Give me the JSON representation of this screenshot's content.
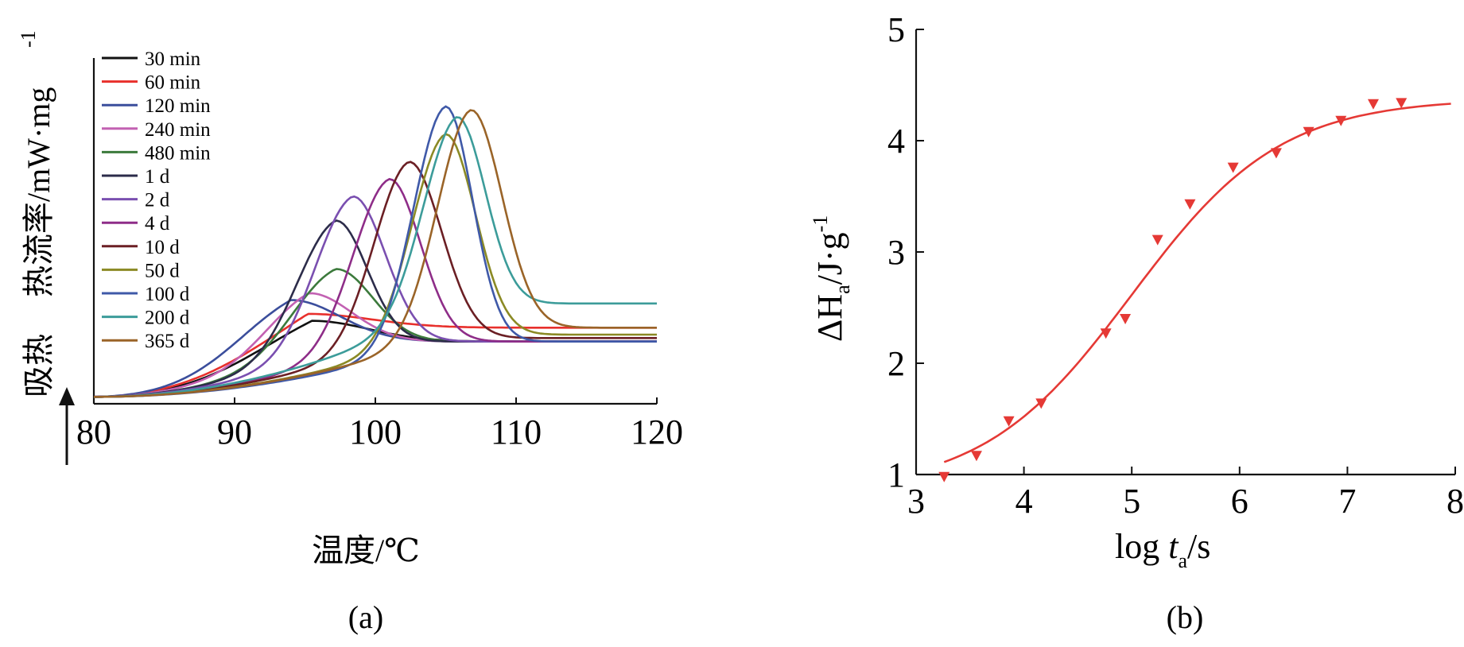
{
  "chart_data": [
    {
      "panel_label": "(a)",
      "type": "line",
      "xlabel": "温度/℃",
      "ylabel_main": "热流率/mW·mg",
      "ylabel_exp": "-1",
      "endotherm_label": "吸热",
      "xlim": [
        80,
        120
      ],
      "xticks": [
        "80",
        "90",
        "100",
        "110",
        "120"
      ],
      "y_units": "arbitrary (no tick values printed)",
      "legend_position": "top-left",
      "series": [
        {
          "name": "30 min",
          "color": "#111111",
          "peak_x": 95.5,
          "peak_h": 0.24,
          "baseline": 0.18,
          "width_left": 4.5,
          "width_right": 4.0
        },
        {
          "name": "60 min",
          "color": "#e8302c",
          "peak_x": 95.2,
          "peak_h": 0.26,
          "baseline": 0.22,
          "width_left": 4.5,
          "width_right": 4.5
        },
        {
          "name": "120 min",
          "color": "#3b4e9c",
          "peak_x": 94.0,
          "peak_h": 0.3,
          "baseline": 0.18,
          "width_left": 4.0,
          "width_right": 3.5
        },
        {
          "name": "240 min",
          "color": "#c261b2",
          "peak_x": 95.3,
          "peak_h": 0.32,
          "baseline": 0.18,
          "width_left": 3.2,
          "width_right": 3.0
        },
        {
          "name": "480 min",
          "color": "#3c7a3c",
          "peak_x": 97.2,
          "peak_h": 0.39,
          "baseline": 0.18,
          "width_left": 3.2,
          "width_right": 2.6
        },
        {
          "name": "1 d",
          "color": "#2c2c4a",
          "peak_x": 97.2,
          "peak_h": 0.53,
          "baseline": 0.18,
          "width_left": 2.8,
          "width_right": 2.2
        },
        {
          "name": "2 d",
          "color": "#7a4fb0",
          "peak_x": 98.4,
          "peak_h": 0.6,
          "baseline": 0.18,
          "width_left": 2.7,
          "width_right": 2.3
        },
        {
          "name": "4 d",
          "color": "#8e2d88",
          "peak_x": 101.0,
          "peak_h": 0.65,
          "baseline": 0.18,
          "width_left": 2.6,
          "width_right": 2.2
        },
        {
          "name": "10 d",
          "color": "#6b1f24",
          "peak_x": 102.4,
          "peak_h": 0.7,
          "baseline": 0.19,
          "width_left": 2.5,
          "width_right": 2.3
        },
        {
          "name": "50 d",
          "color": "#8b8a25",
          "peak_x": 105.0,
          "peak_h": 0.78,
          "baseline": 0.2,
          "width_left": 2.4,
          "width_right": 2.1
        },
        {
          "name": "100 d",
          "color": "#3f59a8",
          "peak_x": 105.0,
          "peak_h": 0.86,
          "baseline": 0.18,
          "width_left": 2.3,
          "width_right": 1.9
        },
        {
          "name": "200 d",
          "color": "#3c9c9a",
          "peak_x": 105.8,
          "peak_h": 0.83,
          "baseline": 0.29,
          "width_left": 2.4,
          "width_right": 2.0
        },
        {
          "name": "365 d",
          "color": "#9a6428",
          "peak_x": 106.8,
          "peak_h": 0.85,
          "baseline": 0.22,
          "width_left": 2.4,
          "width_right": 2.2
        }
      ]
    },
    {
      "panel_label": "(b)",
      "type": "scatter",
      "xlabel": "log t_a/s",
      "ylabel": "ΔH_a/J·g^-1",
      "xlim": [
        3,
        8
      ],
      "ylim": [
        1,
        5
      ],
      "xticks": [
        "3",
        "4",
        "5",
        "6",
        "7",
        "8"
      ],
      "yticks": [
        "1",
        "2",
        "3",
        "4",
        "5"
      ],
      "grid": false,
      "color": "#e53935",
      "points": [
        {
          "x": 3.26,
          "y": 0.98
        },
        {
          "x": 3.56,
          "y": 1.17
        },
        {
          "x": 3.86,
          "y": 1.48
        },
        {
          "x": 4.16,
          "y": 1.64
        },
        {
          "x": 4.76,
          "y": 2.27
        },
        {
          "x": 4.94,
          "y": 2.4
        },
        {
          "x": 5.24,
          "y": 3.11
        },
        {
          "x": 5.54,
          "y": 3.43
        },
        {
          "x": 5.94,
          "y": 3.76
        },
        {
          "x": 6.34,
          "y": 3.89
        },
        {
          "x": 6.64,
          "y": 4.08
        },
        {
          "x": 6.94,
          "y": 4.18
        },
        {
          "x": 7.24,
          "y": 4.33
        },
        {
          "x": 7.5,
          "y": 4.34
        }
      ],
      "fit_curve": {
        "x_start": 3.26,
        "x_end": 8.0,
        "y_min": 0.85,
        "y_max": 4.38,
        "x_mid": 5.0,
        "slope": 1.45
      }
    }
  ]
}
